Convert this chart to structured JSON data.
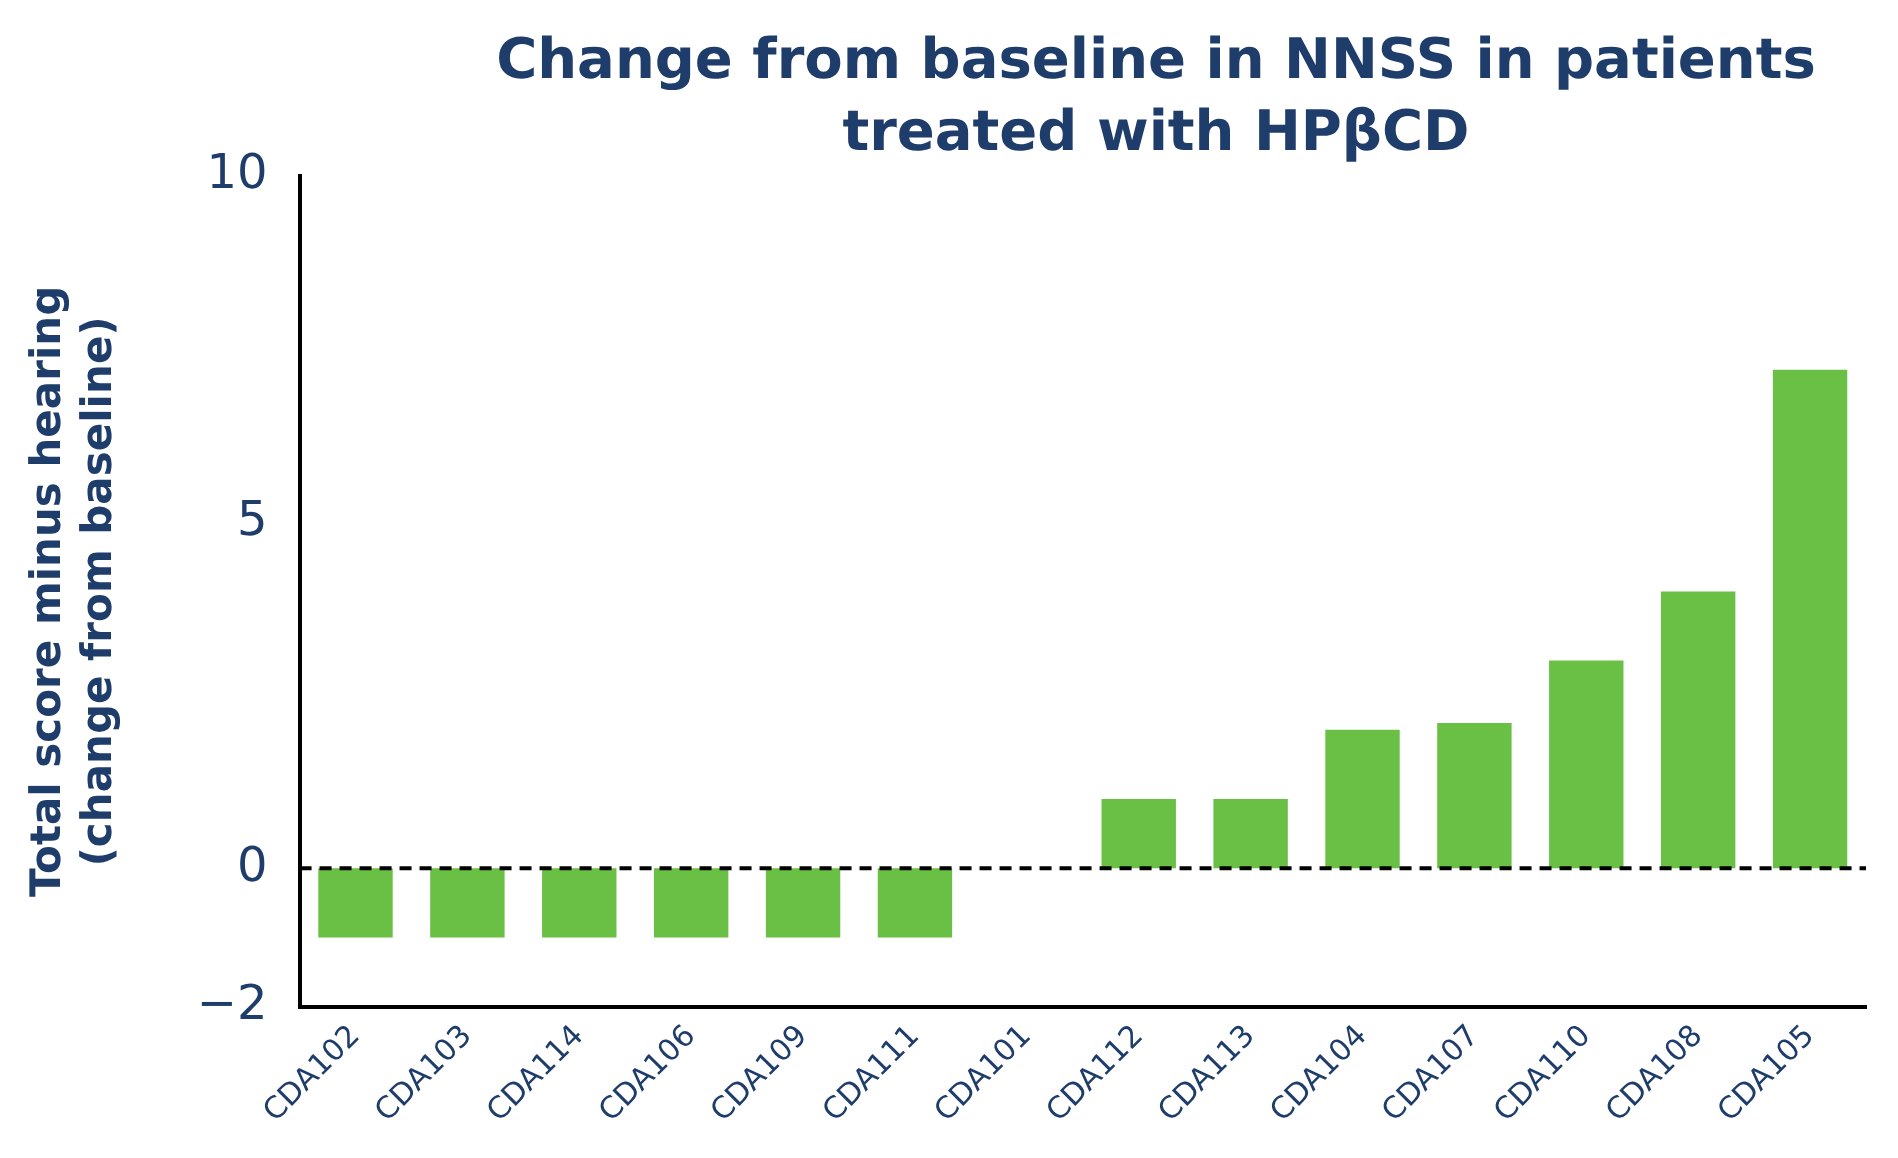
{
  "chart_data": {
    "type": "bar",
    "title": "Change from baseline in NNSS in patients treated with HPβCD",
    "ylabel": "Total score minus hearing\n(change from baseline)",
    "categories": [
      "CDA102",
      "CDA103",
      "CDA114",
      "CDA106",
      "CDA109",
      "CDA111",
      "CDA101",
      "CDA112",
      "CDA113",
      "CDA104",
      "CDA107",
      "CDA110",
      "CDA108",
      "CDA105"
    ],
    "values": [
      -1,
      -1,
      -1,
      -1,
      -1,
      -1,
      0,
      1,
      1,
      2,
      2.1,
      3,
      4,
      7.2
    ],
    "color": "#6abf45",
    "ylim": [
      -2,
      10
    ],
    "yticks": [
      {
        "value": -2,
        "label": "−2"
      },
      0,
      5,
      10
    ],
    "ref_lines": [
      {
        "axis": "y",
        "value": 0,
        "line_style": "dashed",
        "color": "#000000"
      }
    ],
    "grid": false,
    "legend": false
  }
}
